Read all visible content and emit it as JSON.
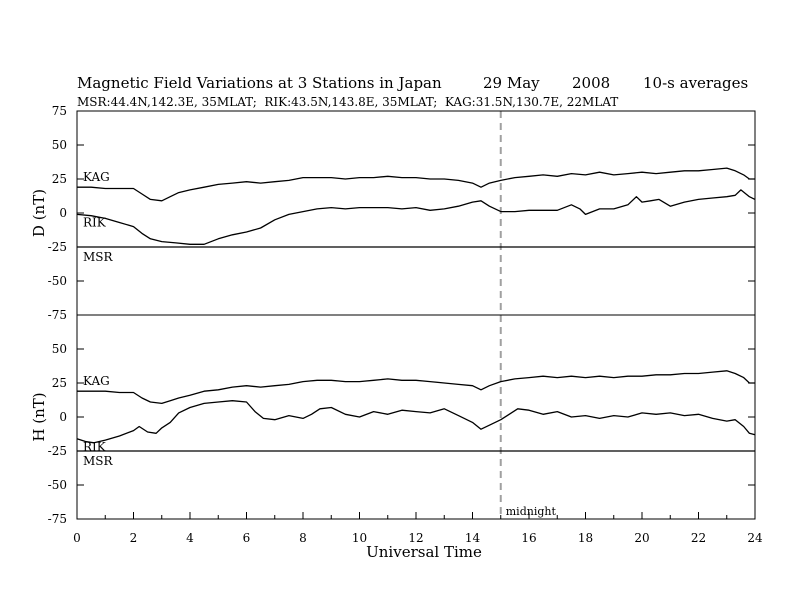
{
  "header": {
    "title": "Magnetic Field Variations at 3 Stations in Japan",
    "date": "29 May",
    "year": "2008",
    "averaging": "10-s averages",
    "stations_line": "MSR:44.4N,142.3E, 35MLAT;  RIK:43.5N,143.8E, 35MLAT;  KAG:31.5N,130.7E, 22MLAT"
  },
  "chart_data": {
    "type": "line",
    "xlabel": "Universal Time",
    "xlim": [
      0,
      24
    ],
    "xticks": [
      0,
      2,
      4,
      6,
      8,
      10,
      12,
      14,
      16,
      18,
      20,
      22,
      24
    ],
    "midnight": {
      "x": 15,
      "label": "midnight",
      "color": "#a0a0a0"
    },
    "line_color": "#000000",
    "panels": [
      {
        "id": "D",
        "ylabel": "D (nT)",
        "ylim": [
          -75,
          75
        ],
        "yticks": [
          75,
          50,
          25,
          0,
          -25,
          -50,
          -75
        ],
        "series": [
          {
            "name": "KAG",
            "x": [
              0,
              0.5,
              1,
              1.5,
              2,
              2.3,
              2.6,
              3,
              3.3,
              3.6,
              4,
              4.5,
              5,
              5.5,
              6,
              6.5,
              7,
              7.5,
              8,
              8.5,
              9,
              9.5,
              10,
              10.5,
              11,
              11.5,
              12,
              12.5,
              13,
              13.5,
              14,
              14.3,
              14.6,
              15,
              15.5,
              16,
              16.5,
              17,
              17.5,
              18,
              18.5,
              19,
              19.5,
              20,
              20.5,
              21,
              21.5,
              22,
              22.5,
              23,
              23.3,
              23.6,
              23.8,
              24
            ],
            "y": [
              19,
              19,
              18,
              18,
              18,
              14,
              10,
              9,
              12,
              15,
              17,
              19,
              21,
              22,
              23,
              22,
              23,
              24,
              26,
              26,
              26,
              25,
              26,
              26,
              27,
              26,
              26,
              25,
              25,
              24,
              22,
              19,
              22,
              24,
              26,
              27,
              28,
              27,
              29,
              28,
              30,
              28,
              29,
              30,
              29,
              30,
              31,
              31,
              32,
              33,
              31,
              28,
              25,
              25
            ]
          },
          {
            "name": "RIK",
            "x": [
              0,
              0.5,
              1,
              1.5,
              2,
              2.3,
              2.6,
              3,
              3.5,
              4,
              4.5,
              5,
              5.5,
              6,
              6.5,
              7,
              7.5,
              8,
              8.5,
              9,
              9.5,
              10,
              10.5,
              11,
              11.5,
              12,
              12.5,
              13,
              13.5,
              14,
              14.3,
              14.6,
              15,
              15.5,
              16,
              16.5,
              17,
              17.5,
              17.8,
              18,
              18.5,
              19,
              19.5,
              19.8,
              20,
              20.3,
              20.6,
              21,
              21.5,
              22,
              22.5,
              23,
              23.3,
              23.5,
              23.8,
              24
            ],
            "y": [
              -1,
              -2,
              -4,
              -7,
              -10,
              -15,
              -19,
              -21,
              -22,
              -23,
              -23,
              -19,
              -16,
              -14,
              -11,
              -5,
              -1,
              1,
              3,
              4,
              3,
              4,
              4,
              4,
              3,
              4,
              2,
              3,
              5,
              8,
              9,
              5,
              1,
              1,
              2,
              2,
              2,
              6,
              3,
              -1,
              3,
              3,
              6,
              12,
              8,
              9,
              10,
              5,
              8,
              10,
              11,
              12,
              13,
              17,
              12,
              10
            ]
          },
          {
            "name": "MSR",
            "x": [
              0,
              24
            ],
            "y": [
              -25,
              -25
            ]
          }
        ]
      },
      {
        "id": "H",
        "ylabel": "H (nT)",
        "ylim": [
          -75,
          75
        ],
        "yticks": [
          75,
          50,
          25,
          0,
          -25,
          -50,
          -75
        ],
        "series": [
          {
            "name": "KAG",
            "x": [
              0,
              0.5,
              1,
              1.5,
              2,
              2.3,
              2.6,
              3,
              3.3,
              3.6,
              4,
              4.5,
              5,
              5.5,
              6,
              6.5,
              7,
              7.5,
              8,
              8.5,
              9,
              9.5,
              10,
              10.5,
              11,
              11.5,
              12,
              12.5,
              13,
              13.5,
              14,
              14.3,
              14.6,
              15,
              15.5,
              16,
              16.5,
              17,
              17.5,
              18,
              18.5,
              19,
              19.5,
              20,
              20.5,
              21,
              21.5,
              22,
              22.5,
              23,
              23.3,
              23.6,
              23.8,
              24
            ],
            "y": [
              19,
              19,
              19,
              18,
              18,
              14,
              11,
              10,
              12,
              14,
              16,
              19,
              20,
              22,
              23,
              22,
              23,
              24,
              26,
              27,
              27,
              26,
              26,
              27,
              28,
              27,
              27,
              26,
              25,
              24,
              23,
              20,
              23,
              26,
              28,
              29,
              30,
              29,
              30,
              29,
              30,
              29,
              30,
              30,
              31,
              31,
              32,
              32,
              33,
              34,
              32,
              29,
              25,
              25
            ]
          },
          {
            "name": "RIK",
            "x": [
              0,
              0.3,
              0.6,
              1,
              1.5,
              2,
              2.2,
              2.5,
              2.8,
              3,
              3.3,
              3.6,
              4,
              4.5,
              5,
              5.5,
              6,
              6.3,
              6.6,
              7,
              7.5,
              8,
              8.3,
              8.6,
              9,
              9.5,
              10,
              10.5,
              11,
              11.5,
              12,
              12.5,
              13,
              13.5,
              14,
              14.3,
              14.6,
              15,
              15.3,
              15.6,
              16,
              16.5,
              17,
              17.5,
              18,
              18.5,
              19,
              19.5,
              20,
              20.5,
              21,
              21.5,
              22,
              22.5,
              23,
              23.3,
              23.6,
              23.8,
              24
            ],
            "y": [
              -16,
              -18,
              -19,
              -17,
              -14,
              -10,
              -7,
              -11,
              -12,
              -8,
              -4,
              3,
              7,
              10,
              11,
              12,
              11,
              4,
              -1,
              -2,
              1,
              -1,
              2,
              6,
              7,
              2,
              0,
              4,
              2,
              5,
              4,
              3,
              6,
              1,
              -4,
              -9,
              -6,
              -2,
              2,
              6,
              5,
              2,
              4,
              0,
              1,
              -1,
              1,
              0,
              3,
              2,
              3,
              1,
              2,
              -1,
              -3,
              -2,
              -7,
              -12,
              -13
            ]
          },
          {
            "name": "MSR",
            "x": [
              0,
              24
            ],
            "y": [
              -25,
              -25
            ]
          }
        ]
      }
    ]
  }
}
